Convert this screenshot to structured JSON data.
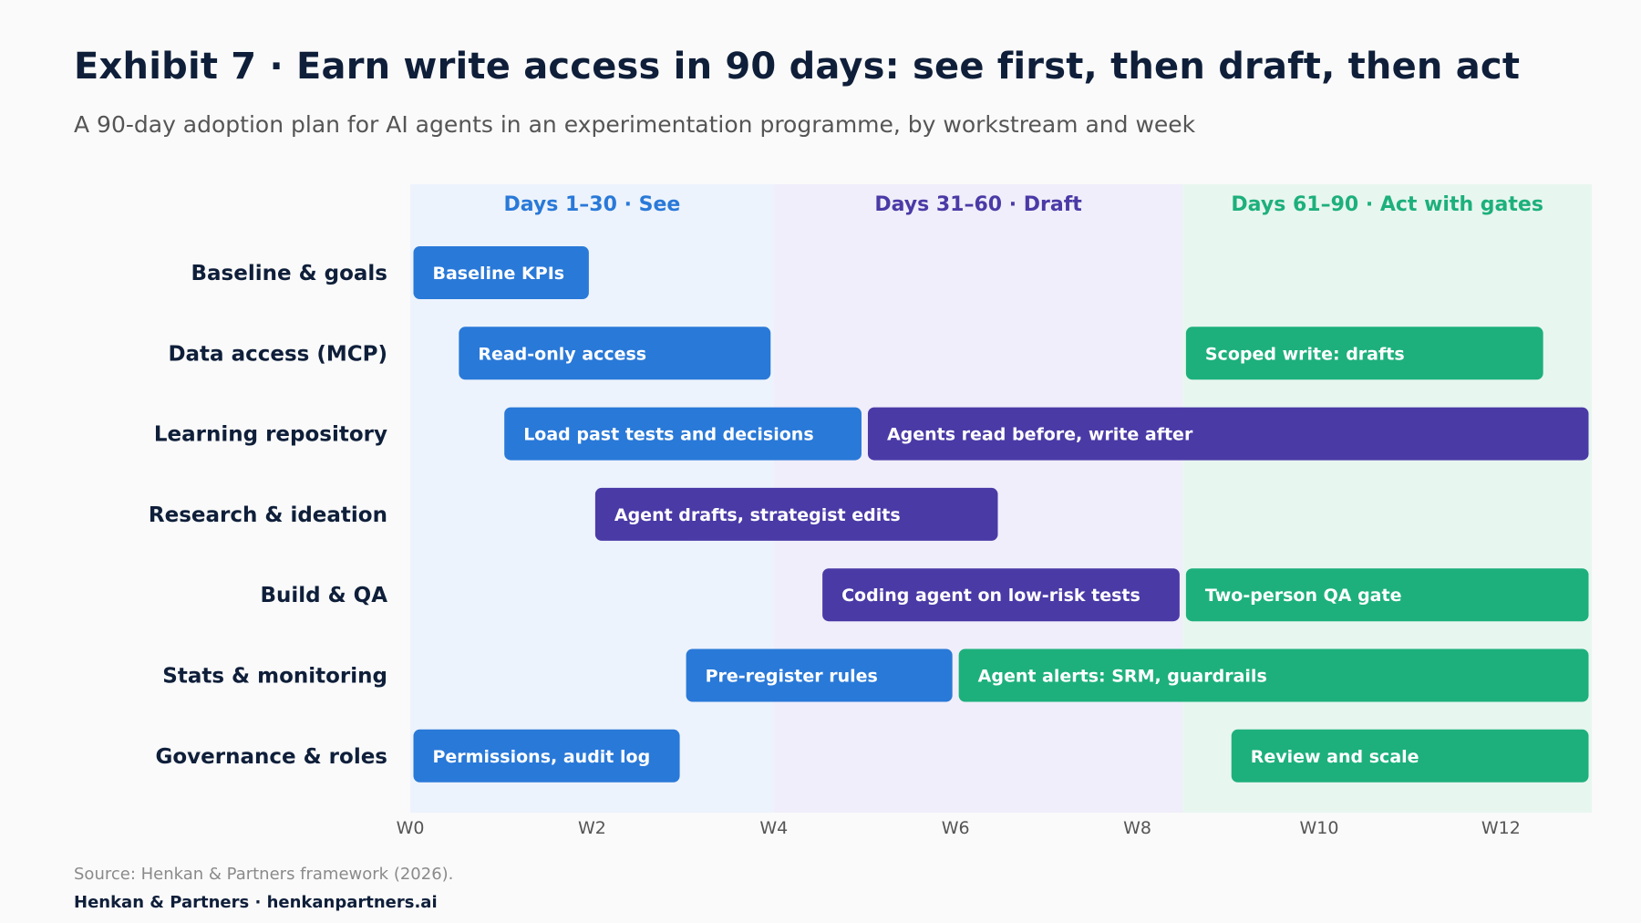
{
  "header": {
    "title": "Exhibit 7 · Earn write access in 90 days: see first, then draft, then act",
    "subtitle": "A 90-day adoption plan for AI agents in an experimentation programme, by workstream and week"
  },
  "footer": {
    "source": "Source: Henkan & Partners framework (2026).",
    "brand": "Henkan & Partners · henkanpartners.ai"
  },
  "chart_data": {
    "type": "gantt",
    "x_unit": "week",
    "xlim": [
      0,
      13
    ],
    "x_ticks": [
      {
        "value": 0,
        "label": "W0"
      },
      {
        "value": 2,
        "label": "W2"
      },
      {
        "value": 4,
        "label": "W4"
      },
      {
        "value": 6,
        "label": "W6"
      },
      {
        "value": 8,
        "label": "W8"
      },
      {
        "value": 10,
        "label": "W10"
      },
      {
        "value": 12,
        "label": "W12"
      }
    ],
    "phases": [
      {
        "label": "Days 1–30 · See",
        "start": 0,
        "end": 4,
        "color": "#2979d8",
        "bg": "#edf3fc"
      },
      {
        "label": "Days 31–60 · Draft",
        "start": 4,
        "end": 8.5,
        "color": "#4a3aa6",
        "bg": "#f0eefa"
      },
      {
        "label": "Days 61–90 · Act with gates",
        "start": 8.5,
        "end": 13,
        "color": "#1db07c",
        "bg": "#e8f6f0"
      }
    ],
    "rows": [
      "Baseline & goals",
      "Data access (MCP)",
      "Learning repository",
      "Research & ideation",
      "Build & QA",
      "Stats & monitoring",
      "Governance & roles"
    ],
    "tasks": [
      {
        "row": 0,
        "label": "Baseline KPIs",
        "start": 0,
        "end": 2,
        "phase": 0
      },
      {
        "row": 1,
        "label": "Read-only access",
        "start": 0.5,
        "end": 4,
        "phase": 0
      },
      {
        "row": 1,
        "label": "Scoped write: drafts",
        "start": 8.5,
        "end": 12.5,
        "phase": 2
      },
      {
        "row": 2,
        "label": "Load past tests and decisions",
        "start": 1,
        "end": 5,
        "phase": 0
      },
      {
        "row": 2,
        "label": "Agents read before, write after",
        "start": 5,
        "end": 13,
        "phase": 1
      },
      {
        "row": 3,
        "label": "Agent drafts, strategist edits",
        "start": 2,
        "end": 6.5,
        "phase": 1
      },
      {
        "row": 4,
        "label": "Coding agent on low-risk tests",
        "start": 4.5,
        "end": 8.5,
        "phase": 1
      },
      {
        "row": 4,
        "label": "Two-person QA gate",
        "start": 8.5,
        "end": 13,
        "phase": 2
      },
      {
        "row": 5,
        "label": "Pre-register rules",
        "start": 3,
        "end": 6,
        "phase": 0
      },
      {
        "row": 5,
        "label": "Agent alerts: SRM, guardrails",
        "start": 6,
        "end": 13,
        "phase": 2
      },
      {
        "row": 6,
        "label": "Permissions, audit log",
        "start": 0,
        "end": 3,
        "phase": 0
      },
      {
        "row": 6,
        "label": "Review and scale",
        "start": 9,
        "end": 13,
        "phase": 2
      }
    ]
  }
}
